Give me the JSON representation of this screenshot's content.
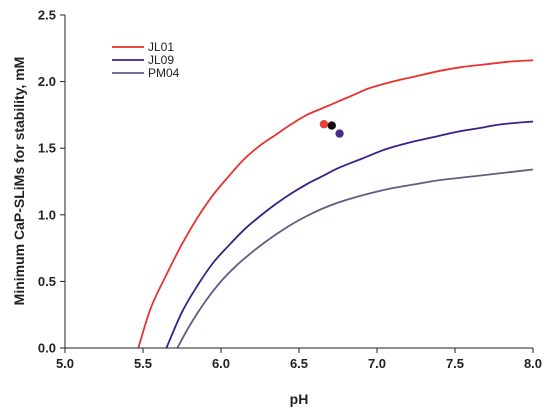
{
  "chart_data": {
    "type": "line",
    "title": "",
    "xlabel": "pH",
    "ylabel": "Minimum CaP-SLiMs for stability, mM",
    "xlim": [
      5.0,
      8.0
    ],
    "ylim": [
      0.0,
      2.5
    ],
    "xticks": [
      "5.0",
      "5.5",
      "6.0",
      "6.5",
      "7.0",
      "7.5",
      "8.0"
    ],
    "yticks": [
      "0.0",
      "0.5",
      "1.0",
      "1.5",
      "2.0",
      "2.5"
    ],
    "grid": false,
    "legend_position": "top-left",
    "series": [
      {
        "name": "JL01",
        "color": "#e8322f",
        "x": [
          5.47,
          5.55,
          5.65,
          5.75,
          5.85,
          5.95,
          6.05,
          6.15,
          6.25,
          6.35,
          6.45,
          6.55,
          6.65,
          6.75,
          6.85,
          6.95,
          7.1,
          7.25,
          7.4,
          7.55,
          7.7,
          7.85,
          8.0
        ],
        "y": [
          0.0,
          0.3,
          0.55,
          0.78,
          0.98,
          1.15,
          1.29,
          1.42,
          1.52,
          1.6,
          1.68,
          1.75,
          1.8,
          1.85,
          1.9,
          1.95,
          2.0,
          2.04,
          2.08,
          2.11,
          2.13,
          2.15,
          2.16
        ]
      },
      {
        "name": "JL09",
        "color": "#3b1f86",
        "x": [
          5.65,
          5.75,
          5.85,
          5.95,
          6.05,
          6.15,
          6.25,
          6.35,
          6.45,
          6.55,
          6.65,
          6.75,
          6.9,
          7.05,
          7.2,
          7.35,
          7.5,
          7.65,
          7.8,
          8.0
        ],
        "y": [
          0.0,
          0.27,
          0.47,
          0.64,
          0.77,
          0.89,
          0.99,
          1.08,
          1.16,
          1.23,
          1.29,
          1.35,
          1.42,
          1.49,
          1.54,
          1.58,
          1.62,
          1.65,
          1.68,
          1.7
        ]
      },
      {
        "name": "PM04",
        "color": "#5d5f85",
        "x": [
          5.72,
          5.8,
          5.9,
          6.0,
          6.1,
          6.2,
          6.3,
          6.4,
          6.5,
          6.6,
          6.7,
          6.8,
          6.95,
          7.1,
          7.25,
          7.4,
          7.55,
          7.7,
          7.85,
          8.0
        ],
        "y": [
          0.0,
          0.17,
          0.35,
          0.5,
          0.62,
          0.72,
          0.81,
          0.89,
          0.96,
          1.02,
          1.07,
          1.11,
          1.16,
          1.2,
          1.23,
          1.26,
          1.28,
          1.3,
          1.32,
          1.34
        ]
      }
    ],
    "points": [
      {
        "x": 6.66,
        "y": 1.68,
        "color": "#e8433b"
      },
      {
        "x": 6.71,
        "y": 1.67,
        "color": "#111111"
      },
      {
        "x": 6.76,
        "y": 1.61,
        "color": "#4b2a8f"
      }
    ]
  }
}
